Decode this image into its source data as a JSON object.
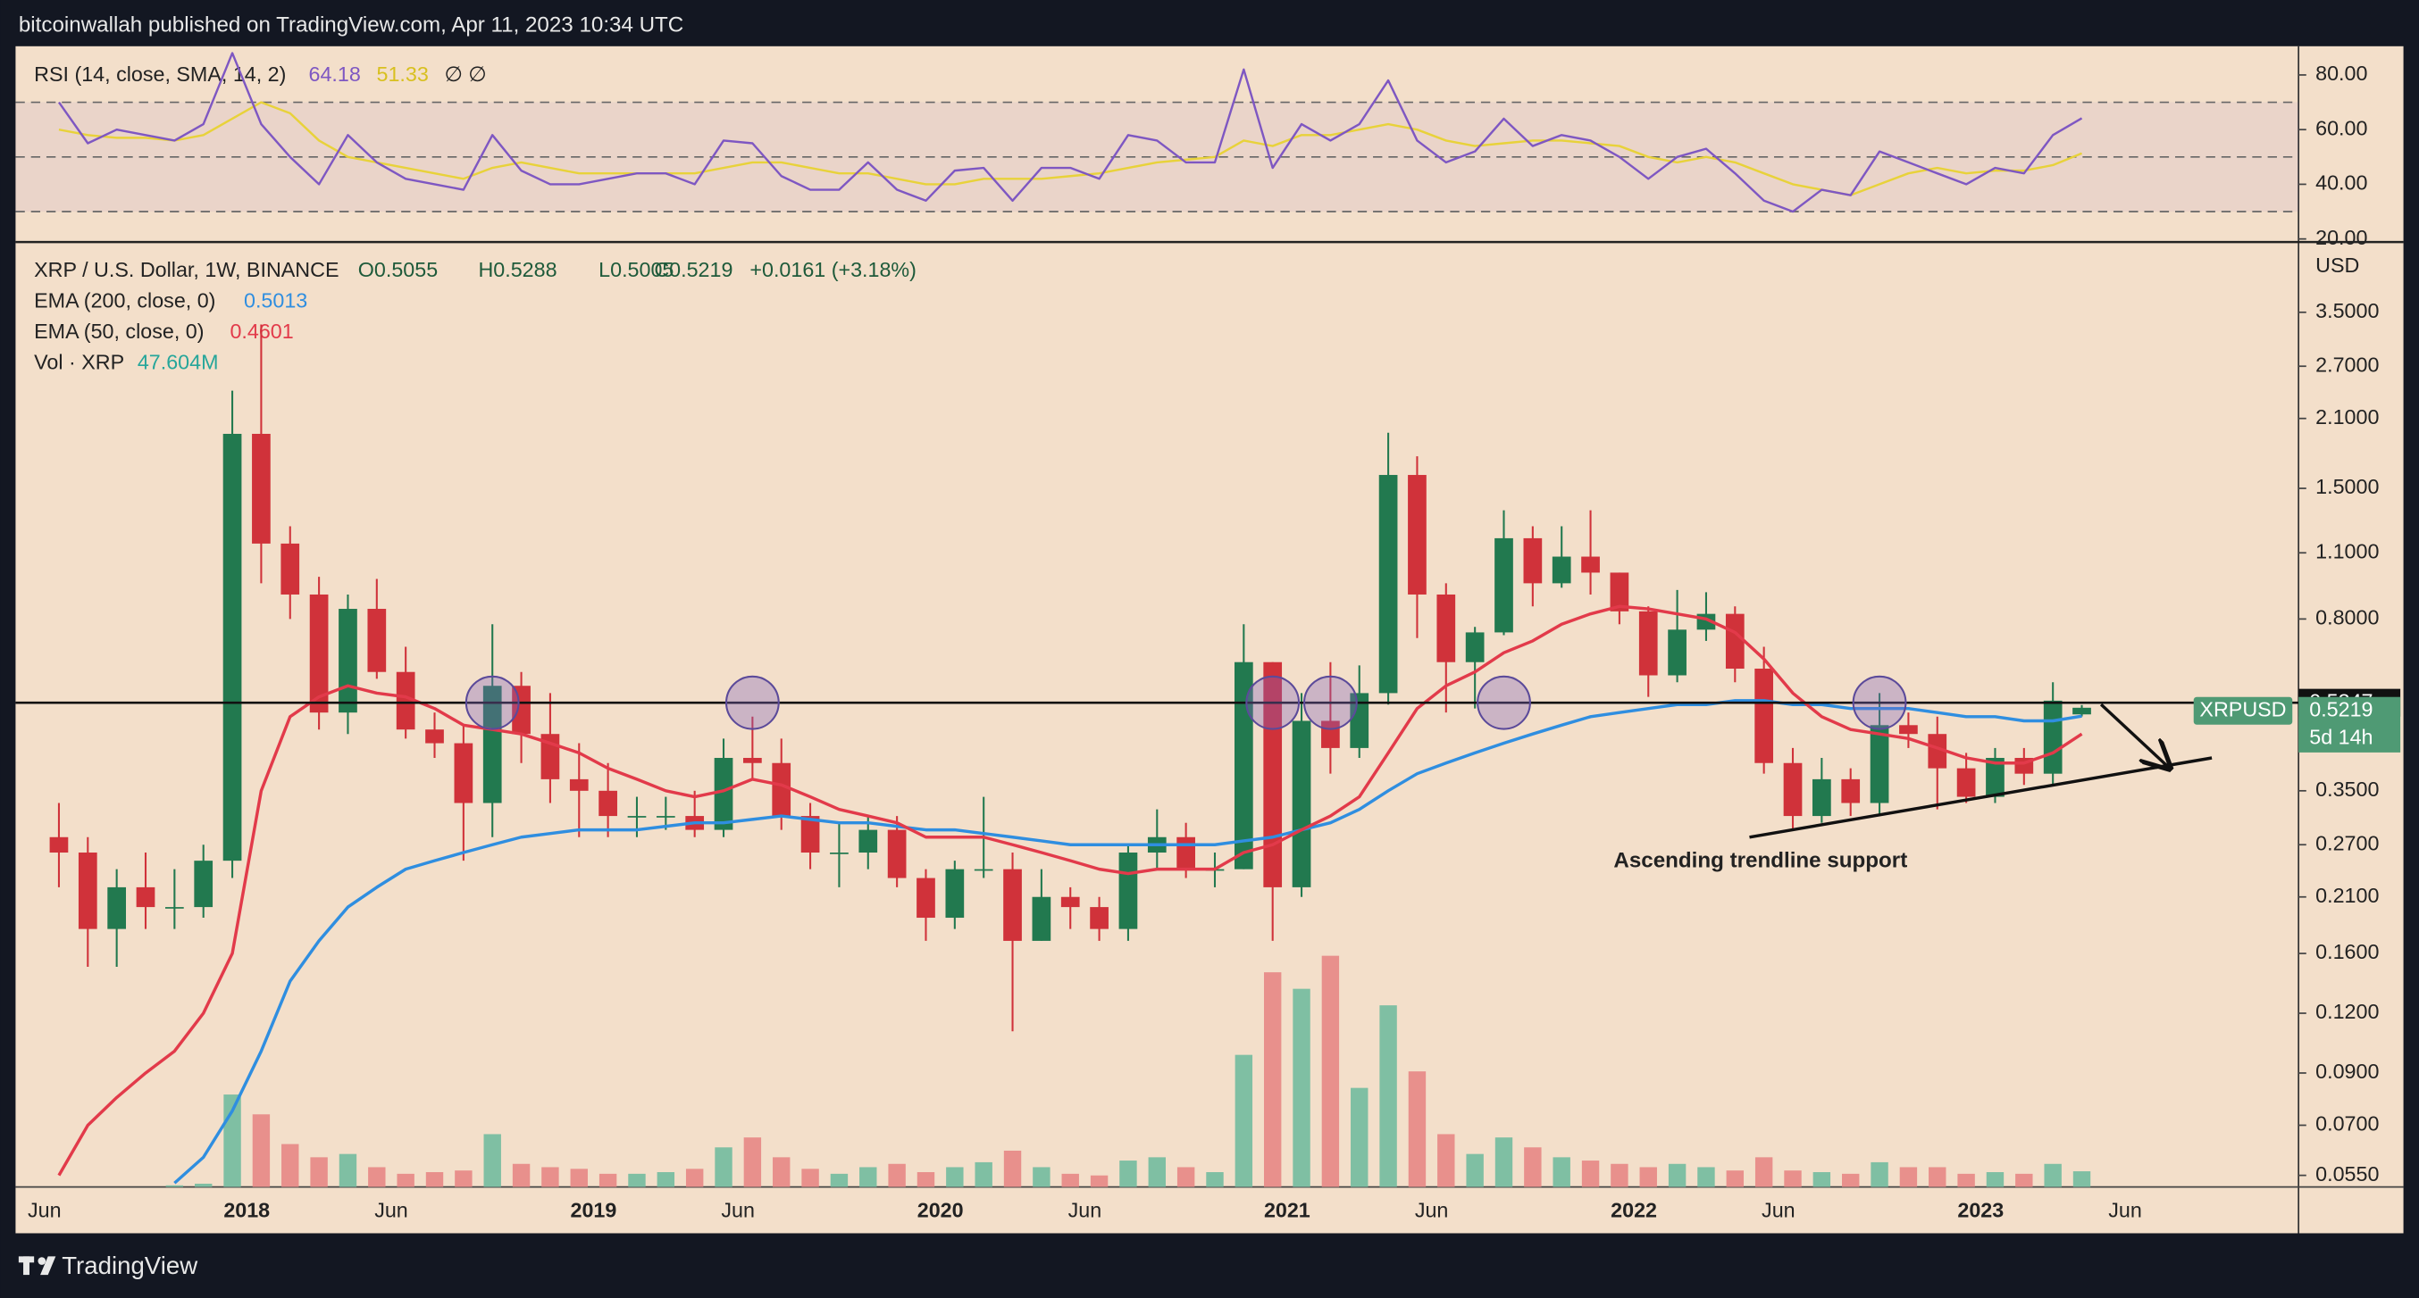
{
  "header": {
    "title": "bitcoinwallah published on TradingView.com, Apr 11, 2023 10:34 UTC"
  },
  "footer": {
    "brand": "TradingView"
  },
  "chart_data": [
    {
      "type": "candlestick",
      "title": "XRP / U.S. Dollar, 1W, BINANCE",
      "ohlc_legend": {
        "open": "O0.5055",
        "high": "H0.5288",
        "low": "L0.5005",
        "close": "C0.5219",
        "change": "+0.0161 (+3.18%)"
      },
      "currency": "USD",
      "log_scale": true,
      "x": [
        "2017-06",
        "2017-07",
        "2017-08",
        "2017-09",
        "2017-10",
        "2017-11",
        "2017-12",
        "2018-01",
        "2018-02",
        "2018-03",
        "2018-04",
        "2018-05",
        "2018-06",
        "2018-07",
        "2018-08",
        "2018-09",
        "2018-10",
        "2018-11",
        "2018-12",
        "2019-01",
        "2019-02",
        "2019-03",
        "2019-04",
        "2019-05",
        "2019-06",
        "2019-07",
        "2019-08",
        "2019-09",
        "2019-10",
        "2019-11",
        "2019-12",
        "2020-01",
        "2020-02",
        "2020-03",
        "2020-04",
        "2020-05",
        "2020-06",
        "2020-07",
        "2020-08",
        "2020-09",
        "2020-10",
        "2020-11",
        "2020-12",
        "2021-01",
        "2021-02",
        "2021-03",
        "2021-04",
        "2021-05",
        "2021-06",
        "2021-07",
        "2021-08",
        "2021-09",
        "2021-10",
        "2021-11",
        "2021-12",
        "2022-01",
        "2022-02",
        "2022-03",
        "2022-04",
        "2022-05",
        "2022-06",
        "2022-07",
        "2022-08",
        "2022-09",
        "2022-10",
        "2022-11",
        "2022-12",
        "2023-01",
        "2023-02",
        "2023-03",
        "2023-04"
      ],
      "open": [
        0.28,
        0.26,
        0.18,
        0.22,
        0.2,
        0.2,
        0.25,
        1.95,
        1.15,
        0.9,
        0.51,
        0.84,
        0.62,
        0.47,
        0.44,
        0.33,
        0.58,
        0.46,
        0.37,
        0.35,
        0.31,
        0.31,
        0.31,
        0.29,
        0.41,
        0.4,
        0.31,
        0.26,
        0.26,
        0.29,
        0.23,
        0.19,
        0.24,
        0.24,
        0.17,
        0.21,
        0.2,
        0.18,
        0.26,
        0.28,
        0.24,
        0.24,
        0.65,
        0.22,
        0.49,
        0.43,
        0.56,
        1.6,
        0.9,
        0.65,
        0.75,
        1.18,
        0.95,
        1.08,
        1.0,
        0.83,
        0.61,
        0.76,
        0.82,
        0.63,
        0.4,
        0.31,
        0.37,
        0.33,
        0.48,
        0.46,
        0.39,
        0.34,
        0.41,
        0.38,
        0.5055
      ],
      "high": [
        0.33,
        0.28,
        0.24,
        0.26,
        0.24,
        0.27,
        2.4,
        3.3,
        1.25,
        0.98,
        0.9,
        0.97,
        0.7,
        0.51,
        0.48,
        0.78,
        0.62,
        0.56,
        0.44,
        0.4,
        0.34,
        0.34,
        0.35,
        0.45,
        0.5,
        0.45,
        0.33,
        0.3,
        0.31,
        0.31,
        0.24,
        0.25,
        0.34,
        0.26,
        0.24,
        0.22,
        0.21,
        0.27,
        0.32,
        0.3,
        0.26,
        0.78,
        0.65,
        0.56,
        0.65,
        0.64,
        1.96,
        1.75,
        0.95,
        0.77,
        1.35,
        1.25,
        1.25,
        1.35,
        1.0,
        0.85,
        0.92,
        0.91,
        0.85,
        0.7,
        0.43,
        0.41,
        0.39,
        0.56,
        0.51,
        0.5,
        0.42,
        0.43,
        0.43,
        0.59,
        0.5288
      ],
      "low": [
        0.22,
        0.15,
        0.15,
        0.18,
        0.18,
        0.19,
        0.23,
        0.95,
        0.8,
        0.47,
        0.46,
        0.6,
        0.45,
        0.41,
        0.25,
        0.28,
        0.4,
        0.33,
        0.28,
        0.28,
        0.28,
        0.29,
        0.28,
        0.28,
        0.37,
        0.29,
        0.24,
        0.22,
        0.24,
        0.22,
        0.17,
        0.18,
        0.23,
        0.11,
        0.17,
        0.18,
        0.17,
        0.17,
        0.24,
        0.23,
        0.22,
        0.24,
        0.17,
        0.21,
        0.38,
        0.41,
        0.53,
        0.73,
        0.51,
        0.52,
        0.74,
        0.85,
        0.93,
        0.9,
        0.78,
        0.55,
        0.59,
        0.72,
        0.59,
        0.38,
        0.29,
        0.3,
        0.31,
        0.31,
        0.43,
        0.32,
        0.33,
        0.33,
        0.36,
        0.36,
        0.5005
      ],
      "close": [
        0.26,
        0.18,
        0.22,
        0.2,
        0.2,
        0.25,
        1.95,
        1.15,
        0.9,
        0.51,
        0.84,
        0.62,
        0.47,
        0.44,
        0.33,
        0.58,
        0.46,
        0.37,
        0.35,
        0.31,
        0.31,
        0.31,
        0.29,
        0.41,
        0.4,
        0.31,
        0.26,
        0.26,
        0.29,
        0.23,
        0.19,
        0.24,
        0.24,
        0.17,
        0.21,
        0.2,
        0.18,
        0.26,
        0.28,
        0.24,
        0.24,
        0.65,
        0.22,
        0.49,
        0.43,
        0.56,
        1.6,
        0.9,
        0.65,
        0.75,
        1.18,
        0.95,
        1.08,
        1.0,
        0.83,
        0.61,
        0.76,
        0.82,
        0.63,
        0.4,
        0.31,
        0.37,
        0.33,
        0.48,
        0.46,
        0.39,
        0.34,
        0.41,
        0.38,
        0.54,
        0.5219
      ],
      "up_color": "#22794f",
      "down_color": "#d0323a",
      "series": [
        {
          "name": "EMA (200, close, 0)",
          "color": "#2f8ee0",
          "values": [
            null,
            null,
            null,
            null,
            0.053,
            0.06,
            0.075,
            0.1,
            0.14,
            0.17,
            0.2,
            0.22,
            0.24,
            0.25,
            0.26,
            0.27,
            0.28,
            0.285,
            0.29,
            0.29,
            0.29,
            0.295,
            0.3,
            0.3,
            0.305,
            0.31,
            0.305,
            0.3,
            0.3,
            0.295,
            0.29,
            0.29,
            0.285,
            0.28,
            0.275,
            0.27,
            0.27,
            0.27,
            0.27,
            0.27,
            0.27,
            0.275,
            0.28,
            0.29,
            0.3,
            0.32,
            0.35,
            0.38,
            0.4,
            0.42,
            0.44,
            0.46,
            0.48,
            0.5,
            0.51,
            0.52,
            0.53,
            0.53,
            0.54,
            0.54,
            0.53,
            0.53,
            0.52,
            0.52,
            0.52,
            0.51,
            0.5,
            0.5,
            0.49,
            0.49,
            0.5013
          ]
        },
        {
          "name": "EMA (50, close, 0)",
          "color": "#e23a4a",
          "values": [
            0.055,
            0.07,
            0.08,
            0.09,
            0.1,
            0.12,
            0.16,
            0.35,
            0.5,
            0.55,
            0.58,
            0.56,
            0.55,
            0.52,
            0.48,
            0.47,
            0.46,
            0.44,
            0.42,
            0.39,
            0.37,
            0.35,
            0.34,
            0.35,
            0.37,
            0.36,
            0.34,
            0.32,
            0.31,
            0.3,
            0.28,
            0.28,
            0.28,
            0.27,
            0.26,
            0.25,
            0.24,
            0.235,
            0.24,
            0.24,
            0.24,
            0.26,
            0.27,
            0.29,
            0.31,
            0.34,
            0.42,
            0.52,
            0.58,
            0.62,
            0.68,
            0.72,
            0.78,
            0.82,
            0.85,
            0.84,
            0.82,
            0.8,
            0.75,
            0.66,
            0.56,
            0.5,
            0.47,
            0.46,
            0.45,
            0.43,
            0.41,
            0.4,
            0.4,
            0.42,
            0.4601
          ]
        }
      ],
      "volume": {
        "name": "Vol · XRP",
        "last_label": "47.604M",
        "up_color": "#7fbfa3",
        "down_color": "#e8908c",
        "values": [
          0,
          0,
          0,
          0,
          5,
          10,
          280,
          220,
          130,
          90,
          100,
          60,
          40,
          45,
          50,
          160,
          70,
          60,
          55,
          40,
          40,
          45,
          55,
          120,
          150,
          90,
          55,
          40,
          60,
          70,
          45,
          60,
          75,
          110,
          60,
          40,
          35,
          80,
          90,
          60,
          45,
          400,
          650,
          600,
          700,
          300,
          550,
          350,
          160,
          100,
          150,
          120,
          90,
          80,
          70,
          60,
          70,
          60,
          50,
          90,
          50,
          45,
          40,
          75,
          60,
          60,
          40,
          45,
          40,
          70,
          47.604
        ]
      },
      "resistance": {
        "value": 0.5347,
        "color": "#111111"
      },
      "resistance_touches": [
        "2018-09",
        "2019-06",
        "2020-12",
        "2021-02",
        "2021-08",
        "2022-09"
      ],
      "trendline": {
        "x": [
          "2022-05",
          "2023-09"
        ],
        "values": [
          0.28,
          0.41
        ],
        "label": "Ascending trendline support"
      },
      "price_tag": {
        "symbol": "XRPUSD",
        "countdown": "5d 14h",
        "color": "#4f9a74"
      },
      "xlim": [
        "2017-05",
        "2023-12"
      ],
      "xticks": [
        {
          "value": "2017-06",
          "label": "Jun"
        },
        {
          "value": "2018-01",
          "label": "2018"
        },
        {
          "value": "2018-06",
          "label": "Jun"
        },
        {
          "value": "2019-01",
          "label": "2019"
        },
        {
          "value": "2019-06",
          "label": "Jun"
        },
        {
          "value": "2020-01",
          "label": "2020"
        },
        {
          "value": "2020-06",
          "label": "Jun"
        },
        {
          "value": "2021-01",
          "label": "2021"
        },
        {
          "value": "2021-06",
          "label": "Jun"
        },
        {
          "value": "2022-01",
          "label": "2022"
        },
        {
          "value": "2022-06",
          "label": "Jun"
        },
        {
          "value": "2023-01",
          "label": "2023"
        },
        {
          "value": "2023-06",
          "label": "Jun"
        }
      ],
      "ylim": [
        0.052,
        4.8
      ],
      "yticks": [
        {
          "value": 3.5,
          "label": "3.5000"
        },
        {
          "value": 2.7,
          "label": "2.7000"
        },
        {
          "value": 2.1,
          "label": "2.1000"
        },
        {
          "value": 1.5,
          "label": "1.5000"
        },
        {
          "value": 1.1,
          "label": "1.1000"
        },
        {
          "value": 0.8,
          "label": "0.8000"
        },
        {
          "value": 0.35,
          "label": "0.3500"
        },
        {
          "value": 0.27,
          "label": "0.2700"
        },
        {
          "value": 0.21,
          "label": "0.2100"
        },
        {
          "value": 0.16,
          "label": "0.1600"
        },
        {
          "value": 0.12,
          "label": "0.1200"
        },
        {
          "value": 0.09,
          "label": "0.0900"
        },
        {
          "value": 0.07,
          "label": "0.0700"
        },
        {
          "value": 0.055,
          "label": "0.0550"
        }
      ]
    },
    {
      "type": "line",
      "title": "RSI (14, close, SMA, 14, 2)",
      "flags": "∅ ∅",
      "series": [
        {
          "name": "RSI",
          "color": "#7e57c2",
          "values": [
            70,
            55,
            60,
            58,
            56,
            62,
            88,
            62,
            50,
            40,
            58,
            48,
            42,
            40,
            38,
            58,
            45,
            40,
            40,
            42,
            44,
            44,
            40,
            56,
            55,
            43,
            38,
            38,
            48,
            38,
            34,
            45,
            46,
            34,
            46,
            46,
            42,
            58,
            56,
            48,
            48,
            82,
            46,
            62,
            56,
            62,
            78,
            56,
            48,
            52,
            64,
            54,
            58,
            56,
            50,
            42,
            50,
            53,
            44,
            34,
            30,
            38,
            36,
            52,
            48,
            44,
            40,
            46,
            44,
            58,
            64.18
          ]
        },
        {
          "name": "SMA",
          "color": "#e8d23a",
          "values": [
            60,
            58,
            57,
            57,
            56,
            58,
            64,
            70,
            66,
            56,
            50,
            48,
            46,
            44,
            42,
            46,
            48,
            46,
            44,
            44,
            44,
            44,
            44,
            46,
            48,
            48,
            46,
            44,
            44,
            42,
            40,
            40,
            42,
            42,
            42,
            43,
            44,
            46,
            48,
            49,
            50,
            56,
            54,
            58,
            58,
            60,
            62,
            60,
            56,
            54,
            55,
            56,
            56,
            55,
            54,
            50,
            48,
            50,
            48,
            44,
            40,
            38,
            36,
            40,
            44,
            46,
            44,
            45,
            45,
            47,
            51.33
          ]
        }
      ],
      "band": [
        30,
        70
      ],
      "midline": 50,
      "ylim": [
        20,
        90.5
      ],
      "yticks": [
        {
          "value": 80,
          "label": "80.00"
        },
        {
          "value": 60,
          "label": "60.00"
        },
        {
          "value": 40,
          "label": "40.00"
        },
        {
          "value": 20,
          "label": "20.00"
        }
      ]
    }
  ]
}
